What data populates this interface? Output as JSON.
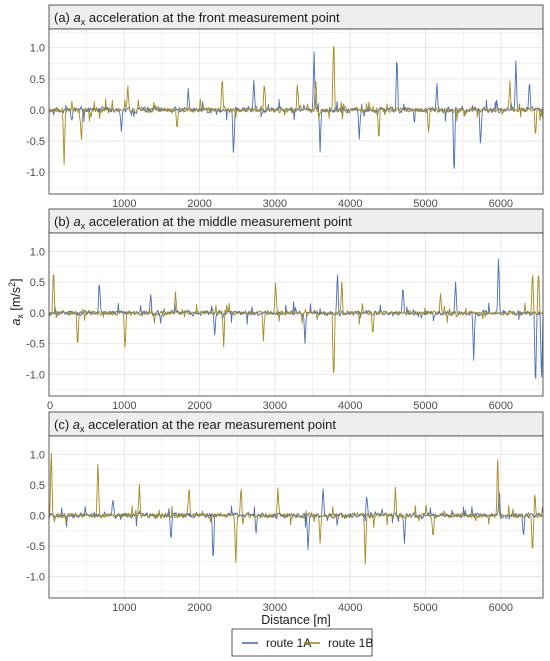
{
  "colors": {
    "route_1a": "#4a6fb5",
    "route_1b": "#a58a1e",
    "strip_fill": "#eeeeee",
    "strip_border": "#333333",
    "grid": "#e6e6e6",
    "frame": "#333333"
  },
  "figure": {
    "xlabel": "Distance [m]",
    "ylabel_parts": {
      "symbol": "a",
      "subscript": "x",
      "unit_open": " [m/s",
      "unit_power": "2",
      "unit_close": "]"
    },
    "legend": [
      "route 1A",
      "route 1B"
    ]
  },
  "chart_data": [
    {
      "type": "line",
      "title_prefix": "(a) ",
      "title_symbol": "a",
      "title_subscript": "x",
      "title_rest": " acceleration at the front measurement point",
      "xlim": [
        0,
        6560
      ],
      "ylim": [
        -1.35,
        1.3
      ],
      "xticks": [
        1000,
        2000,
        3000,
        4000,
        5000,
        6000
      ],
      "yticks": [
        -1.0,
        -0.5,
        0.0,
        0.5,
        1.0
      ],
      "show_x_tick_labels": true,
      "show_x_label": false,
      "grid": true,
      "series": [
        {
          "name": "route 1A",
          "color_key": "route_1a",
          "noise": 0.05,
          "seed": 11,
          "spikes": [
            [
              3520,
              0.95
            ],
            [
              3600,
              -0.65
            ],
            [
              4620,
              0.95
            ],
            [
              5380,
              -1.15
            ],
            [
              5730,
              -0.6
            ],
            [
              6200,
              0.8
            ],
            [
              2450,
              -0.8
            ],
            [
              1850,
              0.35
            ],
            [
              960,
              -0.35
            ],
            [
              2720,
              0.5
            ],
            [
              4120,
              -0.5
            ],
            [
              5150,
              0.45
            ],
            [
              300,
              -0.2
            ],
            [
              6380,
              0.5
            ]
          ]
        },
        {
          "name": "route 1B",
          "color_key": "route_1b",
          "noise": 0.045,
          "seed": 23,
          "spikes": [
            [
              3780,
              1.25
            ],
            [
              3540,
              0.65
            ],
            [
              2300,
              0.55
            ],
            [
              4380,
              -0.55
            ],
            [
              3300,
              0.35
            ],
            [
              1050,
              0.45
            ],
            [
              1700,
              -0.35
            ],
            [
              5040,
              -0.4
            ],
            [
              6120,
              0.45
            ],
            [
              6460,
              -0.45
            ],
            [
              430,
              -0.5
            ],
            [
              200,
              -0.9
            ],
            [
              2860,
              0.45
            ]
          ]
        }
      ]
    },
    {
      "type": "line",
      "title_prefix": "(b) ",
      "title_symbol": "a",
      "title_subscript": "x",
      "title_rest": " acceleration at the middle measurement point",
      "xlim": [
        0,
        6560
      ],
      "ylim": [
        -1.35,
        1.3
      ],
      "xticks": [
        0,
        1000,
        2000,
        3000,
        4000,
        5000,
        6000
      ],
      "yticks": [
        -1.0,
        -0.5,
        0.0,
        0.5,
        1.0
      ],
      "show_x_tick_labels": true,
      "show_x_label": false,
      "grid": true,
      "series": [
        {
          "name": "route 1A",
          "color_key": "route_1a",
          "noise": 0.045,
          "seed": 37,
          "spikes": [
            [
              5970,
              1.0
            ],
            [
              6460,
              -1.3
            ],
            [
              6540,
              -1.15
            ],
            [
              5640,
              -0.75
            ],
            [
              3830,
              0.7
            ],
            [
              670,
              0.6
            ],
            [
              3400,
              -0.5
            ],
            [
              4700,
              0.45
            ],
            [
              1350,
              0.35
            ],
            [
              2200,
              -0.35
            ],
            [
              5400,
              0.5
            ]
          ]
        },
        {
          "name": "route 1B",
          "color_key": "route_1b",
          "noise": 0.04,
          "seed": 53,
          "spikes": [
            [
              3780,
              -1.2
            ],
            [
              6500,
              0.75
            ],
            [
              6420,
              0.65
            ],
            [
              1010,
              -0.65
            ],
            [
              2320,
              -0.55
            ],
            [
              3010,
              0.5
            ],
            [
              380,
              -0.6
            ],
            [
              3890,
              0.55
            ],
            [
              1680,
              0.35
            ],
            [
              60,
              0.75
            ],
            [
              4300,
              -0.35
            ],
            [
              2850,
              -0.5
            ],
            [
              5200,
              0.35
            ]
          ]
        }
      ]
    },
    {
      "type": "line",
      "title_prefix": "(c) ",
      "title_symbol": "a",
      "title_subscript": "x",
      "title_rest": " acceleration at the rear measurement point",
      "xlim": [
        0,
        6560
      ],
      "ylim": [
        -1.35,
        1.3
      ],
      "xticks": [
        1000,
        2000,
        3000,
        4000,
        5000,
        6000
      ],
      "yticks": [
        -1.0,
        -0.5,
        0.0,
        0.5,
        1.0
      ],
      "show_x_tick_labels": true,
      "show_x_label": true,
      "grid": true,
      "series": [
        {
          "name": "route 1A",
          "color_key": "route_1a",
          "noise": 0.045,
          "seed": 71,
          "spikes": [
            [
              2180,
              -0.85
            ],
            [
              3440,
              -0.55
            ],
            [
              4720,
              -0.45
            ],
            [
              3640,
              0.45
            ],
            [
              1620,
              -0.45
            ],
            [
              850,
              0.3
            ],
            [
              5980,
              0.45
            ],
            [
              4220,
              0.35
            ],
            [
              2750,
              -0.3
            ],
            [
              6300,
              -0.35
            ]
          ]
        },
        {
          "name": "route 1B",
          "color_key": "route_1b",
          "noise": 0.045,
          "seed": 97,
          "spikes": [
            [
              5960,
              0.85
            ],
            [
              2480,
              -0.8
            ],
            [
              4200,
              -0.8
            ],
            [
              6420,
              -0.7
            ],
            [
              1860,
              0.5
            ],
            [
              1200,
              0.5
            ],
            [
              3600,
              -0.45
            ],
            [
              3040,
              0.45
            ],
            [
              4600,
              0.45
            ],
            [
              2550,
              0.5
            ],
            [
              650,
              0.95
            ],
            [
              30,
              1.15
            ],
            [
              5100,
              -0.35
            ],
            [
              6450,
              0.4
            ]
          ]
        }
      ]
    }
  ]
}
